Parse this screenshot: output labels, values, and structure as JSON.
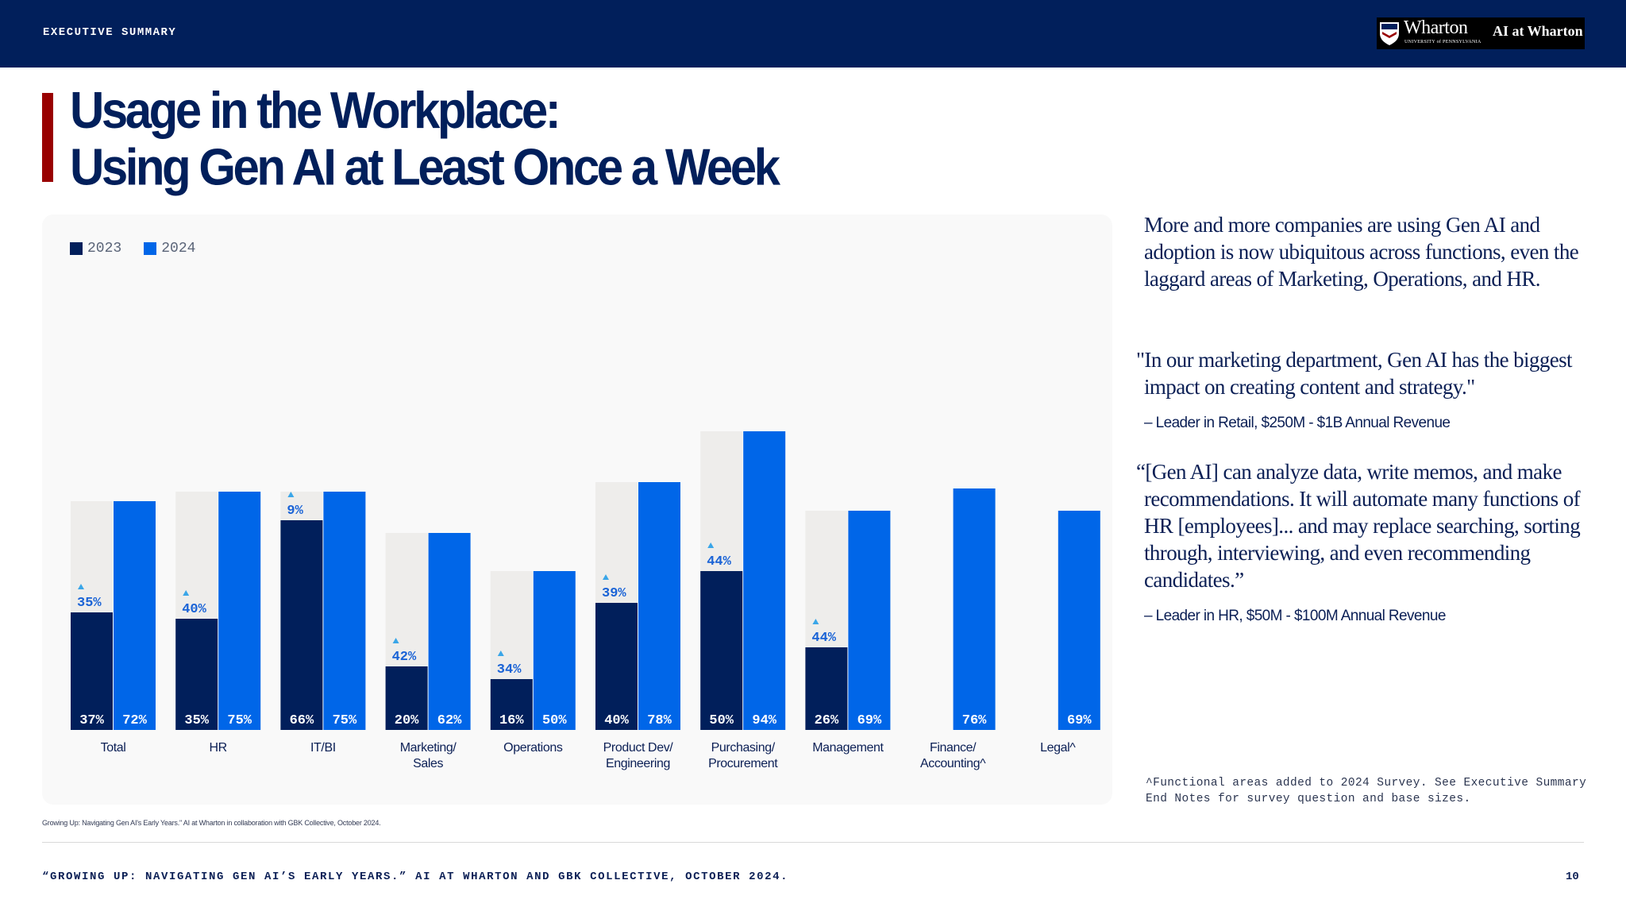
{
  "header": {
    "section_label": "EXECUTIVE SUMMARY",
    "logo_wordmark": "Wharton",
    "logo_subtitle": "UNIVERSITY of PENNSYLVANIA",
    "logo_label": "AI at Wharton"
  },
  "title": {
    "line1": "Usage in the Workplace:",
    "line2": "Using Gen AI at Least Once a Week"
  },
  "colors": {
    "navy": "#011f5b",
    "bar_2023": "#011f5b",
    "bar_2024": "#0066e8",
    "ghost": "#eeedeb",
    "arrow": "#3aa6e8",
    "accent_red": "#990000"
  },
  "chart_data": {
    "type": "bar",
    "title": "Using Gen AI at Least Once a Week",
    "ylim": [
      0,
      100
    ],
    "legend": [
      "2023",
      "2024"
    ],
    "categories": [
      "Total",
      "HR",
      "IT/BI",
      "Marketing/ Sales",
      "Operations",
      "Product Dev/ Engineering",
      "Purchasing/ Procurement",
      "Management",
      "Finance/ Accounting^",
      "Legal^"
    ],
    "category_lines": [
      [
        "Total"
      ],
      [
        "HR"
      ],
      [
        "IT/BI"
      ],
      [
        "Marketing/",
        "Sales"
      ],
      [
        "Operations"
      ],
      [
        "Product Dev/",
        "Engineering"
      ],
      [
        "Purchasing/",
        "Procurement"
      ],
      [
        "Management"
      ],
      [
        "Finance/",
        "Accounting^"
      ],
      [
        "Legal^"
      ]
    ],
    "series": [
      {
        "name": "2023",
        "values": [
          37,
          35,
          66,
          20,
          16,
          40,
          50,
          26,
          null,
          null
        ]
      },
      {
        "name": "2024",
        "values": [
          72,
          75,
          75,
          62,
          50,
          78,
          94,
          69,
          76,
          69
        ]
      }
    ],
    "value_labels_2023": [
      "37%",
      "35%",
      "66%",
      "20%",
      "16%",
      "40%",
      "50%",
      "26%",
      null,
      null
    ],
    "value_labels_2024": [
      "72%",
      "75%",
      "75%",
      "62%",
      "50%",
      "78%",
      "94%",
      "69%",
      "76%",
      "69%"
    ],
    "change_labels": [
      "35%",
      "40%",
      "9%",
      "42%",
      "34%",
      "39%",
      "44%",
      "44%",
      null,
      null
    ],
    "change_values": [
      35,
      40,
      9,
      42,
      34,
      39,
      44,
      44,
      null,
      null
    ]
  },
  "sidebar": {
    "intro": "More and more companies are using Gen AI and adoption is now ubiquitous across functions, even the laggard areas of Marketing, Operations, and HR.",
    "quote1": "\"In our marketing department, Gen AI has the biggest impact on creating content and strategy.\"",
    "attrib1": "– Leader in Retail, $250M - $1B Annual Revenue",
    "quote2": "“[Gen AI] can analyze data, write memos, and make recommendations. It will automate many functions of HR [employees]... and may replace searching, sorting through, interviewing, and even recommending candidates.”",
    "attrib2": "– Leader in HR, $50M - $100M Annual Revenue",
    "footnote": "^Functional areas added to 2024 Survey. See Executive Summary End Notes for survey question and base sizes."
  },
  "source_small": "Growing Up: Navigating Gen AI's Early Years.\" AI at Wharton in collaboration with GBK Collective, October 2024.",
  "footer": {
    "citation": "“GROWING UP: NAVIGATING GEN AI’S EARLY YEARS.” AI AT WHARTON AND GBK COLLECTIVE, OCTOBER 2024.",
    "page_number": "10"
  }
}
